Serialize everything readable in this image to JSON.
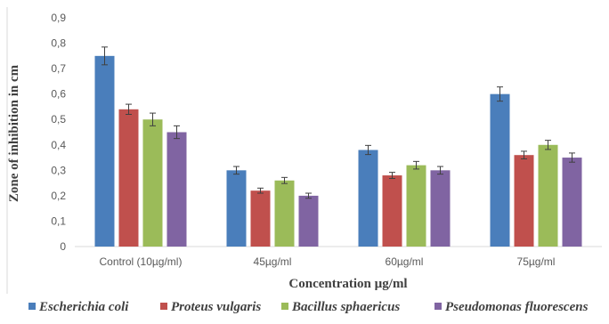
{
  "chart_data": {
    "type": "bar",
    "title": "",
    "xlabel": "Concentration µg/ml",
    "ylabel": "Zone of inhibition in cm",
    "categories": [
      "Control (10µg/ml)",
      "45µg/ml",
      "60µg/ml",
      "75µg/ml"
    ],
    "ylim": [
      0,
      0.9
    ],
    "yticks": [
      "0",
      "0,1",
      "0,2",
      "0,3",
      "0,4",
      "0,5",
      "0,6",
      "0,7",
      "0,8",
      "0,9"
    ],
    "grid": false,
    "legend_position": "bottom",
    "series": [
      {
        "name": "Escherichia coli",
        "color": "#4a7ebb",
        "values": [
          0.75,
          0.3,
          0.38,
          0.6
        ],
        "errors": [
          0.035,
          0.015,
          0.018,
          0.028
        ]
      },
      {
        "name": "Proteus vulgaris",
        "color": "#c0504d",
        "values": [
          0.54,
          0.22,
          0.28,
          0.36
        ],
        "errors": [
          0.02,
          0.01,
          0.012,
          0.015
        ]
      },
      {
        "name": "Bacillus sphaericus",
        "color": "#9bbb59",
        "values": [
          0.5,
          0.26,
          0.32,
          0.4
        ],
        "errors": [
          0.025,
          0.012,
          0.015,
          0.018
        ]
      },
      {
        "name": "Pseudomonas fluorescens",
        "color": "#8064a2",
        "values": [
          0.45,
          0.2,
          0.3,
          0.35
        ],
        "errors": [
          0.025,
          0.01,
          0.015,
          0.018
        ]
      }
    ]
  }
}
